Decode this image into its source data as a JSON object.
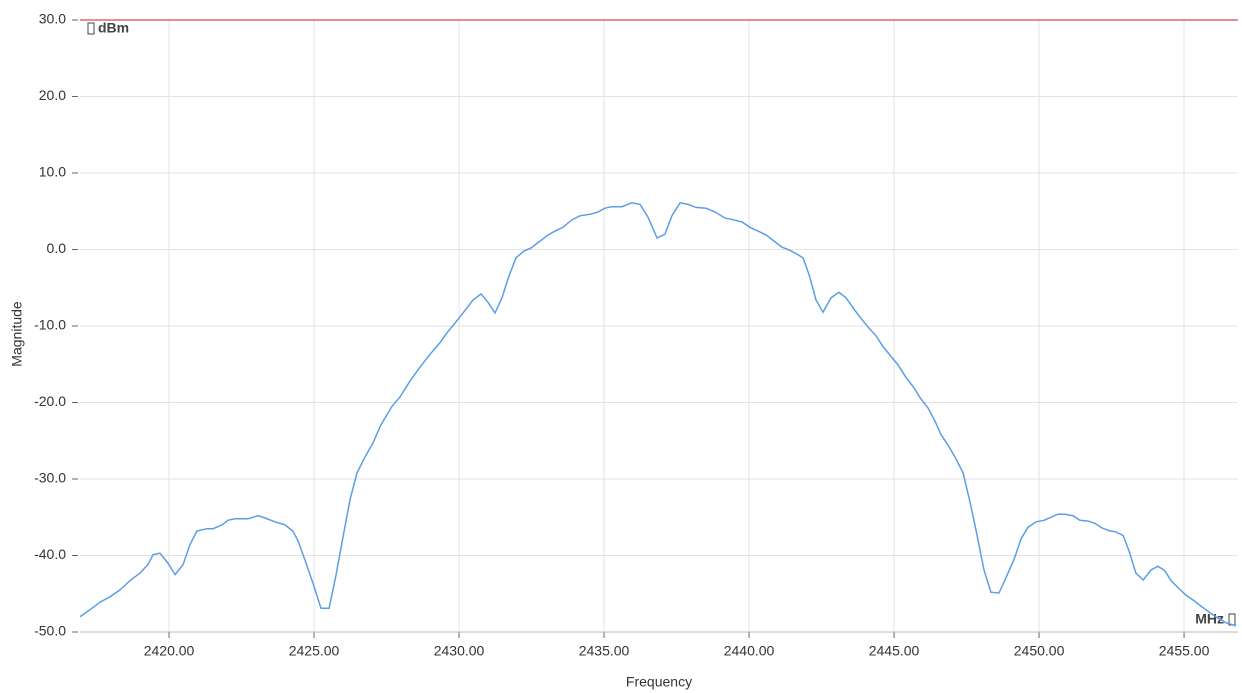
{
  "chart_data": {
    "type": "line",
    "x_label": "Frequency",
    "y_label": "Magnitude",
    "y_unit": "dBm",
    "x_unit": "MHz",
    "xlim": [
      2416.93,
      2456.86
    ],
    "ylim": [
      -50,
      30
    ],
    "xticks": [
      {
        "value": 2420,
        "label": "2420.00"
      },
      {
        "value": 2425,
        "label": "2425.00"
      },
      {
        "value": 2430,
        "label": "2430.00"
      },
      {
        "value": 2435,
        "label": "2435.00"
      },
      {
        "value": 2440,
        "label": "2440.00"
      },
      {
        "value": 2445,
        "label": "2445.00"
      },
      {
        "value": 2450,
        "label": "2450.00"
      },
      {
        "value": 2455,
        "label": "2455.00"
      }
    ],
    "yticks": [
      {
        "value": -50,
        "label": "-50.0"
      },
      {
        "value": -40,
        "label": "-40.0"
      },
      {
        "value": -30,
        "label": "-30.0"
      },
      {
        "value": -20,
        "label": "-20.0"
      },
      {
        "value": -10,
        "label": "-10.0"
      },
      {
        "value": 0,
        "label": "0.0"
      },
      {
        "value": 10,
        "label": "10.0"
      },
      {
        "value": 20,
        "label": "20.0"
      },
      {
        "value": 30,
        "label": "30.0"
      }
    ],
    "grid": true,
    "reference_line": {
      "value": 30,
      "color": "#e06666"
    },
    "series": [
      {
        "color": "#5a9fe6",
        "x": [
          2416.93,
          2417.27,
          2417.62,
          2417.96,
          2418.31,
          2418.65,
          2419.0,
          2419.27,
          2419.45,
          2419.69,
          2419.96,
          2420.21,
          2420.48,
          2420.72,
          2420.96,
          2421.31,
          2421.52,
          2421.83,
          2422.03,
          2422.27,
          2422.72,
          2423.07,
          2423.31,
          2423.65,
          2424.0,
          2424.27,
          2424.45,
          2424.69,
          2424.96,
          2425.24,
          2425.52,
          2425.76,
          2426.0,
          2426.24,
          2426.48,
          2426.76,
          2427.03,
          2427.31,
          2427.69,
          2427.96,
          2428.31,
          2428.65,
          2429.0,
          2429.34,
          2429.58,
          2429.93,
          2430.2,
          2430.48,
          2430.76,
          2431.0,
          2431.24,
          2431.48,
          2431.72,
          2431.96,
          2432.24,
          2432.48,
          2432.79,
          2433.07,
          2433.31,
          2433.58,
          2433.9,
          2434.17,
          2434.52,
          2434.79,
          2435.03,
          2435.27,
          2435.62,
          2435.96,
          2436.24,
          2436.52,
          2436.83,
          2437.1,
          2437.34,
          2437.62,
          2437.9,
          2438.17,
          2438.52,
          2438.83,
          2439.17,
          2439.45,
          2439.76,
          2440.03,
          2440.31,
          2440.59,
          2440.86,
          2441.14,
          2441.41,
          2441.65,
          2441.86,
          2442.07,
          2442.31,
          2442.55,
          2442.83,
          2443.1,
          2443.34,
          2443.62,
          2443.9,
          2444.14,
          2444.38,
          2444.62,
          2444.86,
          2445.14,
          2445.41,
          2445.69,
          2445.9,
          2446.17,
          2446.41,
          2446.62,
          2446.9,
          2447.14,
          2447.38,
          2447.62,
          2447.86,
          2448.1,
          2448.34,
          2448.62,
          2448.86,
          2449.14,
          2449.38,
          2449.62,
          2449.9,
          2450.17,
          2450.41,
          2450.65,
          2450.89,
          2451.17,
          2451.41,
          2451.69,
          2451.93,
          2452.17,
          2452.45,
          2452.65,
          2452.9,
          2453.1,
          2453.34,
          2453.59,
          2453.86,
          2454.1,
          2454.34,
          2454.55,
          2454.79,
          2455.07,
          2455.34,
          2455.62,
          2455.9,
          2456.17,
          2456.45,
          2456.79
        ],
        "values": [
          -48.0,
          -47.1,
          -46.1,
          -45.4,
          -44.5,
          -43.3,
          -42.3,
          -41.2,
          -39.9,
          -39.7,
          -41.0,
          -42.5,
          -41.2,
          -38.6,
          -36.8,
          -36.5,
          -36.5,
          -36.0,
          -35.4,
          -35.2,
          -35.2,
          -34.8,
          -35.1,
          -35.6,
          -36.0,
          -36.8,
          -38.1,
          -40.6,
          -43.6,
          -46.9,
          -46.9,
          -42.5,
          -37.6,
          -32.7,
          -29.2,
          -27.1,
          -25.3,
          -22.9,
          -20.5,
          -19.3,
          -17.2,
          -15.4,
          -13.7,
          -12.2,
          -10.9,
          -9.3,
          -8.0,
          -6.6,
          -5.8,
          -6.9,
          -8.3,
          -6.3,
          -3.5,
          -1.1,
          -0.2,
          0.2,
          1.1,
          1.9,
          2.4,
          2.9,
          3.9,
          4.4,
          4.6,
          4.9,
          5.4,
          5.6,
          5.6,
          6.1,
          5.9,
          4.2,
          1.5,
          2.0,
          4.4,
          6.1,
          5.9,
          5.5,
          5.4,
          4.9,
          4.1,
          3.9,
          3.6,
          2.9,
          2.4,
          1.9,
          1.1,
          0.3,
          -0.1,
          -0.6,
          -1.1,
          -3.3,
          -6.6,
          -8.2,
          -6.3,
          -5.6,
          -6.3,
          -7.8,
          -9.2,
          -10.3,
          -11.3,
          -12.7,
          -13.8,
          -15.1,
          -16.7,
          -18.1,
          -19.4,
          -20.7,
          -22.4,
          -24.2,
          -25.8,
          -27.4,
          -29.2,
          -33.0,
          -37.3,
          -41.9,
          -44.8,
          -44.9,
          -42.9,
          -40.5,
          -37.8,
          -36.3,
          -35.6,
          -35.4,
          -35.0,
          -34.6,
          -34.6,
          -34.8,
          -35.4,
          -35.5,
          -35.8,
          -36.4,
          -36.8,
          -36.9,
          -37.4,
          -39.4,
          -42.3,
          -43.2,
          -41.9,
          -41.4,
          -42.0,
          -43.3,
          -44.2,
          -45.2,
          -45.9,
          -46.7,
          -47.5,
          -48.2,
          -48.8,
          -49.2
        ]
      }
    ]
  }
}
